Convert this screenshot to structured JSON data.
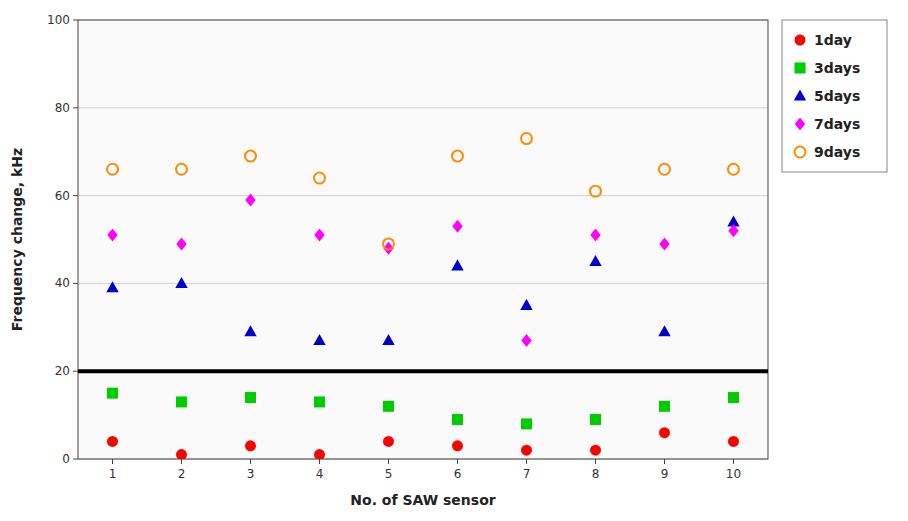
{
  "chart_data": {
    "type": "scatter",
    "xlabel": "No. of SAW sensor",
    "ylabel": "Frequency change, kHz",
    "x": [
      1,
      2,
      3,
      4,
      5,
      6,
      7,
      8,
      9,
      10
    ],
    "series": [
      {
        "name": "1day",
        "color": "#ff0000",
        "marker": "circle",
        "values": [
          4,
          1,
          3,
          1,
          4,
          3,
          2,
          2,
          6,
          4
        ]
      },
      {
        "name": "3days",
        "color": "#00cc00",
        "marker": "square",
        "values": [
          15,
          13,
          14,
          13,
          12,
          9,
          8,
          9,
          12,
          14
        ]
      },
      {
        "name": "5days",
        "color": "#0000cc",
        "marker": "triangle",
        "values": [
          39,
          40,
          29,
          27,
          27,
          44,
          35,
          45,
          29,
          54
        ]
      },
      {
        "name": "7days",
        "color": "#ff00ff",
        "marker": "diamond",
        "values": [
          51,
          49,
          59,
          51,
          48,
          53,
          27,
          51,
          49,
          52
        ]
      },
      {
        "name": "9days",
        "color": "#ff8c00",
        "marker": "open-circle",
        "values": [
          66,
          66,
          69,
          64,
          49,
          69,
          73,
          61,
          66,
          66
        ]
      }
    ],
    "hline_y": 20,
    "xlim": [
      0.5,
      10.5
    ],
    "ylim": [
      0,
      100
    ],
    "xticks": [
      1,
      2,
      3,
      4,
      5,
      6,
      7,
      8,
      9,
      10
    ],
    "yticks": [
      0,
      20,
      40,
      60,
      80,
      100
    ],
    "grid": "y",
    "legend": "right"
  }
}
